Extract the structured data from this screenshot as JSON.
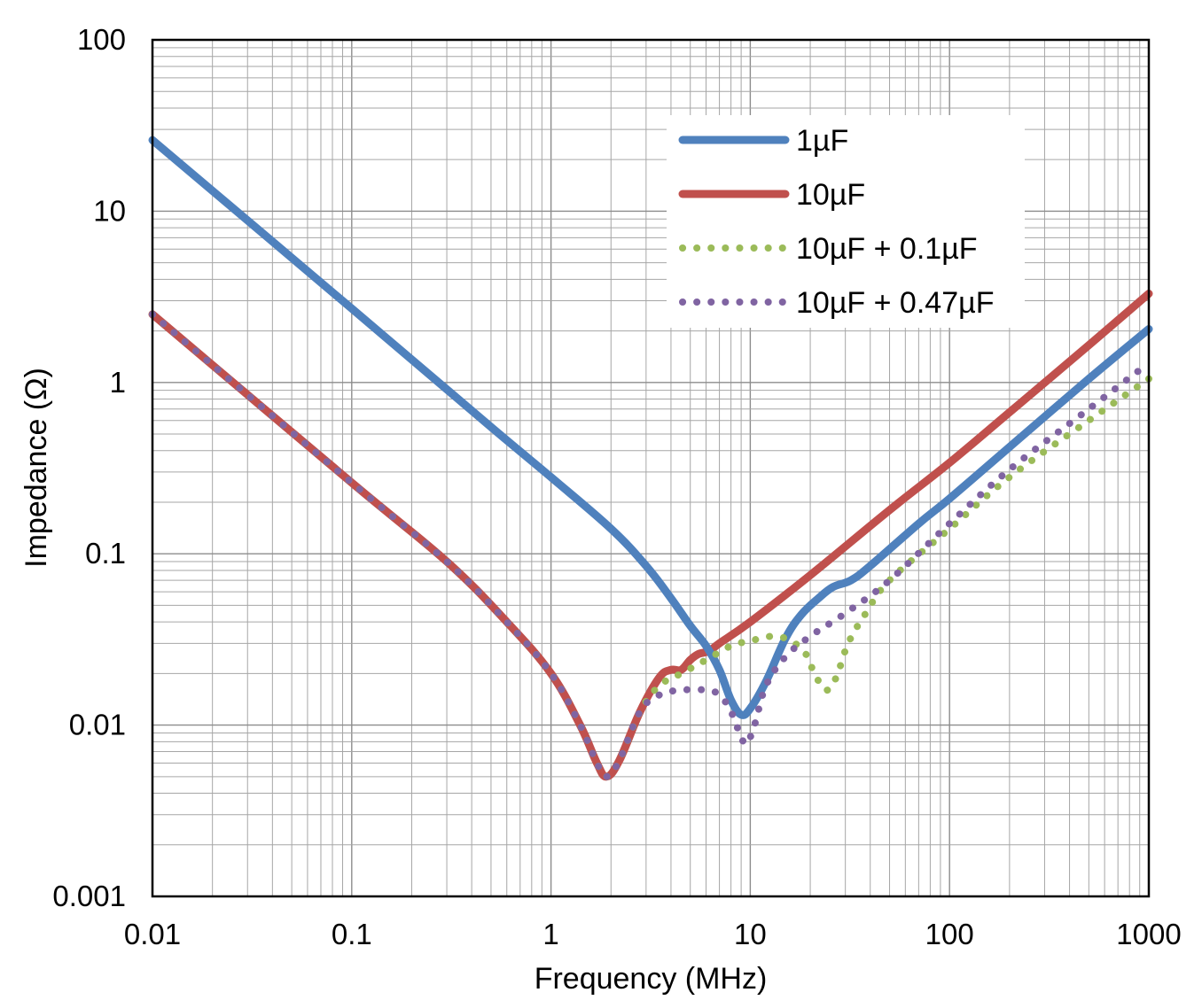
{
  "chart_data": {
    "type": "line",
    "title": "",
    "xlabel": "Frequency (MHz)",
    "ylabel": "Impedance (Ω)",
    "xscale": "log",
    "yscale": "log",
    "xlim": [
      0.01,
      1000
    ],
    "ylim": [
      0.001,
      100
    ],
    "grid": true,
    "legend_position": "top-right",
    "x_tick_labels": [
      "0.01",
      "0.1",
      "1",
      "10",
      "100",
      "1000"
    ],
    "y_tick_labels": [
      "0.001",
      "0.01",
      "0.1",
      "1",
      "10",
      "100"
    ],
    "series": [
      {
        "name": "1µF",
        "color": "#4f81bd",
        "style": "solid",
        "points": [
          [
            0.01,
            26
          ],
          [
            0.1,
            2.7
          ],
          [
            0.5,
            0.55
          ],
          [
            1,
            0.28
          ],
          [
            2,
            0.14
          ],
          [
            3,
            0.085
          ],
          [
            4,
            0.055
          ],
          [
            5,
            0.038
          ],
          [
            6,
            0.029
          ],
          [
            7,
            0.021
          ],
          [
            8,
            0.014
          ],
          [
            9,
            0.0115
          ],
          [
            10,
            0.0125
          ],
          [
            12,
            0.018
          ],
          [
            15,
            0.032
          ],
          [
            18,
            0.044
          ],
          [
            22,
            0.055
          ],
          [
            26,
            0.064
          ],
          [
            32,
            0.07
          ],
          [
            40,
            0.085
          ],
          [
            70,
            0.15
          ],
          [
            100,
            0.21
          ],
          [
            200,
            0.42
          ],
          [
            500,
            1.05
          ],
          [
            1000,
            2.05
          ]
        ]
      },
      {
        "name": "10µF",
        "color": "#c0504d",
        "style": "solid",
        "points": [
          [
            0.01,
            2.5
          ],
          [
            0.1,
            0.26
          ],
          [
            0.3,
            0.09
          ],
          [
            0.6,
            0.04
          ],
          [
            1,
            0.02
          ],
          [
            1.4,
            0.01
          ],
          [
            1.7,
            0.006
          ],
          [
            1.9,
            0.005
          ],
          [
            2.2,
            0.0062
          ],
          [
            2.8,
            0.012
          ],
          [
            3.5,
            0.019
          ],
          [
            4,
            0.021
          ],
          [
            4.5,
            0.021
          ],
          [
            5,
            0.024
          ],
          [
            5.5,
            0.026
          ],
          [
            6.2,
            0.027
          ],
          [
            7,
            0.03
          ],
          [
            10,
            0.04
          ],
          [
            20,
            0.075
          ],
          [
            50,
            0.18
          ],
          [
            100,
            0.34
          ],
          [
            200,
            0.67
          ],
          [
            500,
            1.65
          ],
          [
            1000,
            3.3
          ]
        ]
      },
      {
        "name": "10µF + 0.1µF",
        "color": "#9bbb59",
        "style": "dotted",
        "points": [
          [
            0.01,
            2.5
          ],
          [
            0.1,
            0.26
          ],
          [
            0.3,
            0.09
          ],
          [
            0.6,
            0.04
          ],
          [
            1,
            0.02
          ],
          [
            1.4,
            0.01
          ],
          [
            1.7,
            0.006
          ],
          [
            1.9,
            0.005
          ],
          [
            2.2,
            0.0062
          ],
          [
            2.8,
            0.012
          ],
          [
            3.5,
            0.017
          ],
          [
            4.5,
            0.02
          ],
          [
            6,
            0.024
          ],
          [
            8,
            0.029
          ],
          [
            10,
            0.031
          ],
          [
            13,
            0.033
          ],
          [
            16,
            0.031
          ],
          [
            19,
            0.026
          ],
          [
            21,
            0.02
          ],
          [
            24,
            0.016
          ],
          [
            27,
            0.019
          ],
          [
            31,
            0.03
          ],
          [
            38,
            0.045
          ],
          [
            50,
            0.07
          ],
          [
            100,
            0.14
          ],
          [
            200,
            0.28
          ],
          [
            500,
            0.6
          ],
          [
            1000,
            1.05
          ]
        ]
      },
      {
        "name": "10µF + 0.47µF",
        "color": "#8064a2",
        "style": "dotted",
        "points": [
          [
            0.01,
            2.5
          ],
          [
            0.1,
            0.26
          ],
          [
            0.3,
            0.09
          ],
          [
            0.6,
            0.04
          ],
          [
            1,
            0.02
          ],
          [
            1.4,
            0.01
          ],
          [
            1.7,
            0.006
          ],
          [
            1.9,
            0.005
          ],
          [
            2.2,
            0.0062
          ],
          [
            2.8,
            0.012
          ],
          [
            3.5,
            0.015
          ],
          [
            4.5,
            0.016
          ],
          [
            6,
            0.016
          ],
          [
            7,
            0.015
          ],
          [
            8,
            0.012
          ],
          [
            9,
            0.0085
          ],
          [
            9.6,
            0.0078
          ],
          [
            10.5,
            0.01
          ],
          [
            12,
            0.017
          ],
          [
            15,
            0.025
          ],
          [
            20,
            0.033
          ],
          [
            30,
            0.045
          ],
          [
            50,
            0.07
          ],
          [
            100,
            0.15
          ],
          [
            200,
            0.31
          ],
          [
            500,
            0.7
          ],
          [
            1000,
            1.3
          ]
        ]
      }
    ]
  }
}
